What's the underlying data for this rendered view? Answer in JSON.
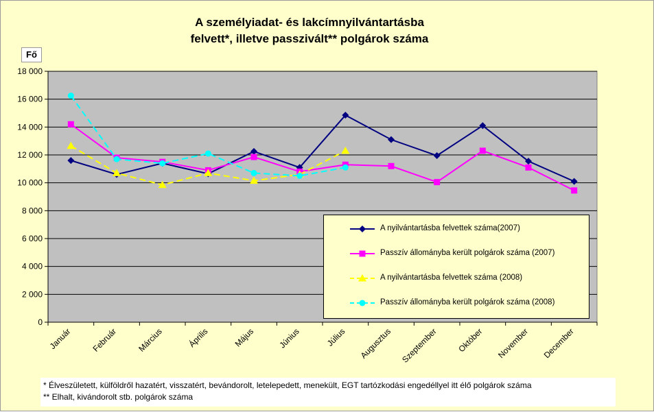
{
  "chart_data": {
    "type": "line",
    "title": "A személyiadat- és lakcímnyilvántartásba\nfelvett*, illetve passzivált** polgárok száma",
    "ylabel": "Fő",
    "xlabel": "",
    "ylim": [
      0,
      18000
    ],
    "yticks": [
      0,
      2000,
      4000,
      6000,
      8000,
      10000,
      12000,
      14000,
      16000,
      18000
    ],
    "ytick_labels": [
      "0",
      "2 000",
      "4 000",
      "6 000",
      "8 000",
      "10 000",
      "12 000",
      "14 000",
      "16 000",
      "18 000"
    ],
    "categories": [
      "Január",
      "Február",
      "Március",
      "Április",
      "Május",
      "Június",
      "Július",
      "Augusztus",
      "Szeptember",
      "Október",
      "November",
      "December"
    ],
    "grid": true,
    "legend_position": "lower-right",
    "plot_background": "#c0c0c0",
    "series": [
      {
        "name": "A nyilvántartásba felvettek száma(2007)",
        "color": "#000080",
        "marker": "diamond",
        "dash": false,
        "values": [
          11600,
          10600,
          11400,
          10650,
          12250,
          11100,
          14850,
          13100,
          11950,
          14100,
          11550,
          10100
        ]
      },
      {
        "name": "Passzív állományba került polgárok száma (2007)",
        "color": "#ff00ff",
        "marker": "square",
        "dash": false,
        "values": [
          14200,
          11800,
          11500,
          10900,
          11850,
          10800,
          11300,
          11200,
          10050,
          12300,
          11100,
          9450
        ]
      },
      {
        "name": "A nyilvántartásba felvettek száma (2008)",
        "color": "#ffff00",
        "marker": "triangle",
        "dash": true,
        "values": [
          12650,
          10700,
          9850,
          10700,
          10150,
          10600,
          12300,
          null,
          null,
          null,
          null,
          null
        ]
      },
      {
        "name": "Passzív állományba került polgárok száma (2008)",
        "color": "#00ffff",
        "marker": "circle",
        "dash": true,
        "values": [
          16250,
          11700,
          11400,
          12100,
          10700,
          10500,
          11100,
          null,
          null,
          null,
          null,
          null
        ]
      }
    ]
  },
  "footnotes": [
    "* Élveszületett, külföldről hazatért, visszatért, bevándorolt, letelepedett, menekült, EGT tartózkodási engedéllyel itt élő  polgárok száma",
    "** Elhalt, kivándorolt stb. polgárok száma"
  ]
}
